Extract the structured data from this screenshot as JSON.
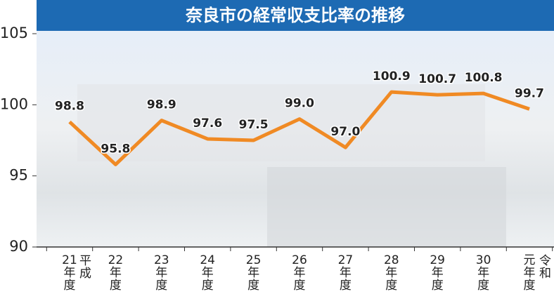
{
  "chart_data": {
    "type": "line",
    "title": "奈良市の経常収支比率の推移",
    "categories": [
      "21年度",
      "22年度",
      "23年度",
      "24年度",
      "25年度",
      "26年度",
      "27年度",
      "28年度",
      "29年度",
      "30年度",
      "元年度"
    ],
    "values": [
      98.8,
      95.8,
      98.9,
      97.6,
      97.5,
      99.0,
      97.0,
      100.9,
      100.7,
      100.8,
      99.7
    ],
    "value_labels": [
      "98.8",
      "95.8",
      "98.9",
      "97.6",
      "97.5",
      "99.0",
      "97.0",
      "100.9",
      "100.7",
      "100.8",
      "99.7"
    ],
    "color": "#f08a24",
    "ylim": [
      90,
      105
    ],
    "yticks": [
      90,
      95,
      100,
      105
    ],
    "annotations": [
      "平成",
      "令和"
    ]
  }
}
